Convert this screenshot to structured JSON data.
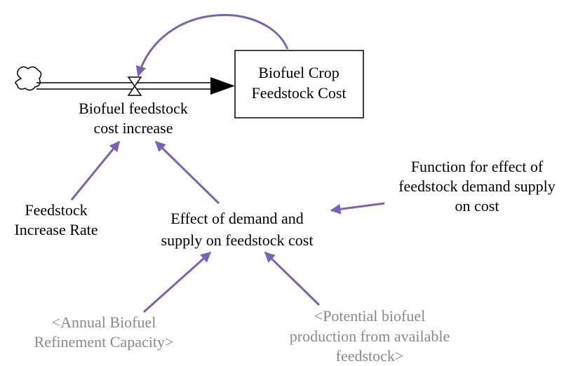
{
  "stock": {
    "label": [
      "Biofuel Crop",
      "Feedstock Cost"
    ]
  },
  "flow": {
    "label": [
      "Biofuel feedstock",
      "cost increase"
    ]
  },
  "nodes": [
    {
      "label": [
        "Feedstock",
        "Increase Rate"
      ]
    },
    {
      "label": [
        "Effect of demand and",
        "supply on feedstock cost"
      ]
    },
    {
      "label": [
        "Function for effect of",
        "feedstock demand supply",
        "on cost"
      ]
    },
    {
      "label": [
        "<Annual Biofuel",
        "Refinement Capacity>"
      ]
    },
    {
      "label": [
        "<Potential biofuel",
        "production from available",
        "feedstock>"
      ]
    }
  ]
}
